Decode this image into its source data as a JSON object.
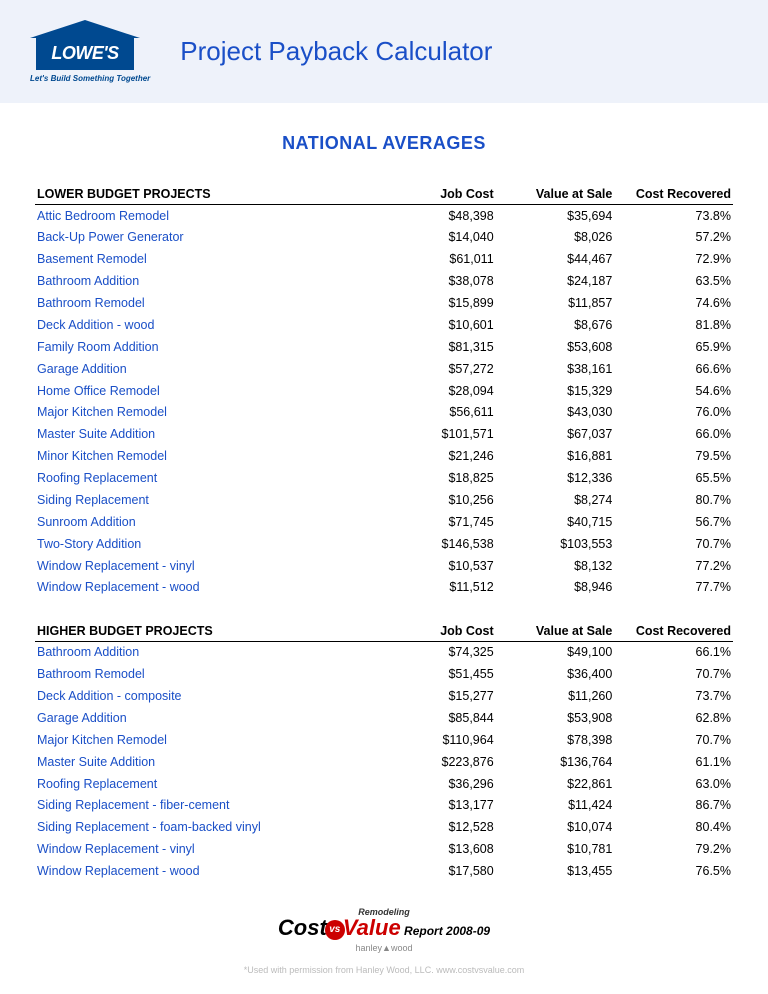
{
  "header": {
    "logo_text": "LOWE'S",
    "tagline": "Let's Build Something Together",
    "title": "Project Payback Calculator"
  },
  "subtitle": "NATIONAL AVERAGES",
  "columns": {
    "c1": "Job Cost",
    "c2": "Value at Sale",
    "c3": "Cost Recovered"
  },
  "sections": [
    {
      "heading": "LOWER BUDGET PROJECTS",
      "rows": [
        {
          "p": "Attic Bedroom Remodel",
          "cost": "$48,398",
          "val": "$35,694",
          "rec": "73.8%"
        },
        {
          "p": "Back-Up Power Generator",
          "cost": "$14,040",
          "val": "$8,026",
          "rec": "57.2%"
        },
        {
          "p": "Basement Remodel",
          "cost": "$61,011",
          "val": "$44,467",
          "rec": "72.9%"
        },
        {
          "p": "Bathroom Addition",
          "cost": "$38,078",
          "val": "$24,187",
          "rec": "63.5%"
        },
        {
          "p": "Bathroom Remodel",
          "cost": "$15,899",
          "val": "$11,857",
          "rec": "74.6%"
        },
        {
          "p": "Deck Addition - wood",
          "cost": "$10,601",
          "val": "$8,676",
          "rec": "81.8%"
        },
        {
          "p": "Family Room Addition",
          "cost": "$81,315",
          "val": "$53,608",
          "rec": "65.9%"
        },
        {
          "p": "Garage Addition",
          "cost": "$57,272",
          "val": "$38,161",
          "rec": "66.6%"
        },
        {
          "p": "Home Office Remodel",
          "cost": "$28,094",
          "val": "$15,329",
          "rec": "54.6%"
        },
        {
          "p": "Major Kitchen Remodel",
          "cost": "$56,611",
          "val": "$43,030",
          "rec": "76.0%"
        },
        {
          "p": "Master Suite Addition",
          "cost": "$101,571",
          "val": "$67,037",
          "rec": "66.0%"
        },
        {
          "p": "Minor Kitchen Remodel",
          "cost": "$21,246",
          "val": "$16,881",
          "rec": "79.5%"
        },
        {
          "p": "Roofing Replacement",
          "cost": "$18,825",
          "val": "$12,336",
          "rec": "65.5%"
        },
        {
          "p": "Siding Replacement",
          "cost": "$10,256",
          "val": "$8,274",
          "rec": "80.7%"
        },
        {
          "p": "Sunroom Addition",
          "cost": "$71,745",
          "val": "$40,715",
          "rec": "56.7%"
        },
        {
          "p": "Two-Story Addition",
          "cost": "$146,538",
          "val": "$103,553",
          "rec": "70.7%"
        },
        {
          "p": "Window Replacement - vinyl",
          "cost": "$10,537",
          "val": "$8,132",
          "rec": "77.2%"
        },
        {
          "p": "Window Replacement - wood",
          "cost": "$11,512",
          "val": "$8,946",
          "rec": "77.7%"
        }
      ]
    },
    {
      "heading": "HIGHER BUDGET PROJECTS",
      "rows": [
        {
          "p": "Bathroom Addition",
          "cost": "$74,325",
          "val": "$49,100",
          "rec": "66.1%"
        },
        {
          "p": "Bathroom Remodel",
          "cost": "$51,455",
          "val": "$36,400",
          "rec": "70.7%"
        },
        {
          "p": "Deck Addition - composite",
          "cost": "$15,277",
          "val": "$11,260",
          "rec": "73.7%"
        },
        {
          "p": "Garage Addition",
          "cost": "$85,844",
          "val": "$53,908",
          "rec": "62.8%"
        },
        {
          "p": "Major Kitchen Remodel",
          "cost": "$110,964",
          "val": "$78,398",
          "rec": "70.7%"
        },
        {
          "p": "Master Suite Addition",
          "cost": "$223,876",
          "val": "$136,764",
          "rec": "61.1%"
        },
        {
          "p": "Roofing Replacement",
          "cost": "$36,296",
          "val": "$22,861",
          "rec": "63.0%"
        },
        {
          "p": "Siding Replacement - fiber-cement",
          "cost": "$13,177",
          "val": "$11,424",
          "rec": "86.7%"
        },
        {
          "p": "Siding Replacement - foam-backed vinyl",
          "cost": "$12,528",
          "val": "$10,074",
          "rec": "80.4%"
        },
        {
          "p": "Window Replacement - vinyl",
          "cost": "$13,608",
          "val": "$10,781",
          "rec": "79.2%"
        },
        {
          "p": "Window Replacement - wood",
          "cost": "$17,580",
          "val": "$13,455",
          "rec": "76.5%"
        }
      ]
    }
  ],
  "footer": {
    "remodeling": "Remodeling",
    "cost": "Cost",
    "vs": "vs",
    "value": "Value",
    "report": " Report 2008-09",
    "hanley": "hanley▲wood",
    "permission": "*Used with permission from Hanley Wood, LLC. www.costvsvalue.com"
  },
  "style": {
    "link_color": "#1a4fc7",
    "header_bg": "#eef2fa",
    "logo_bg": "#004990",
    "text_color": "#000000",
    "accent_red": "#c00"
  }
}
